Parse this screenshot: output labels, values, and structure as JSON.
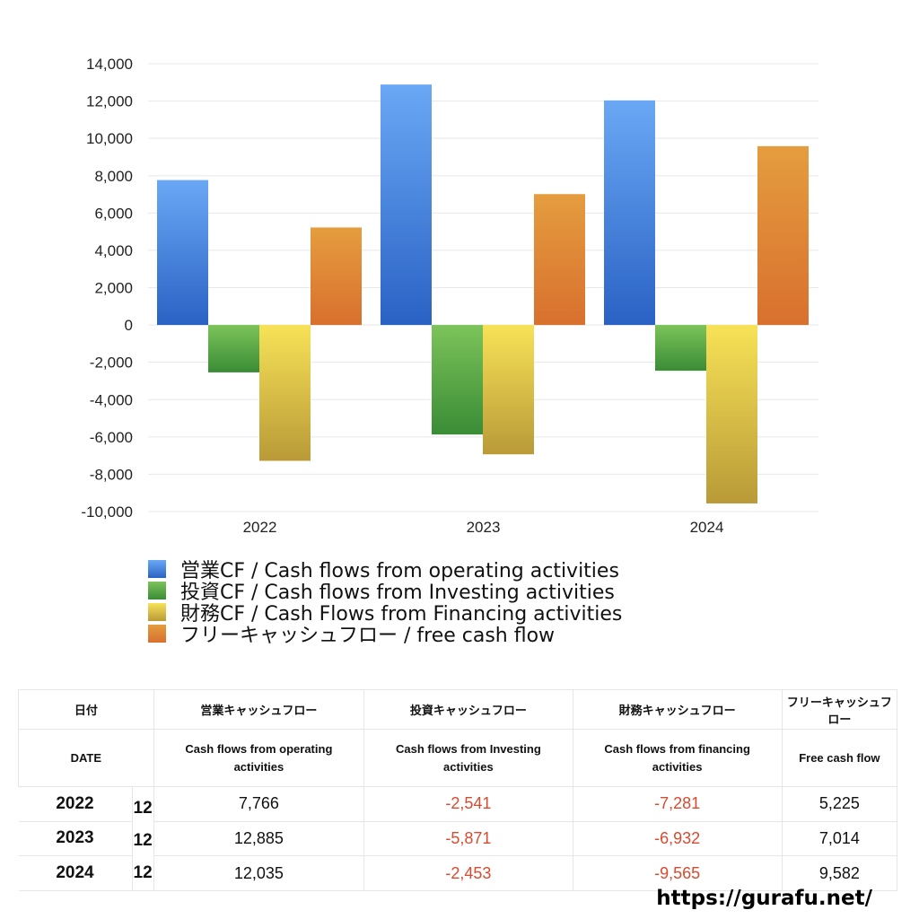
{
  "chart_data": {
    "type": "bar",
    "categories": [
      "2022",
      "2023",
      "2024"
    ],
    "series": [
      {
        "name": "営業CF / Cash flows from operating activities",
        "values": [
          7766,
          12885,
          12035
        ],
        "color": [
          "#6aa8f5",
          "#2a62c4"
        ]
      },
      {
        "name": "投資CF / Cash flows from Investing activities",
        "values": [
          -2541,
          -5871,
          -2453
        ],
        "color": [
          "#7cc35a",
          "#3a8c36"
        ]
      },
      {
        "name": "財務CF / Cash Flows from Financing activities",
        "values": [
          -7281,
          -6932,
          -9565
        ],
        "color": [
          "#f7e257",
          "#b99a38"
        ]
      },
      {
        "name": "フリーキャッシュフロー / free cash flow",
        "values": [
          5225,
          7014,
          9582
        ],
        "color": [
          "#e59d3f",
          "#d8702e"
        ]
      }
    ],
    "ylim": [
      -10000,
      14000
    ],
    "yticks": [
      "14,000",
      "12,000",
      "10,000",
      "8,000",
      "6,000",
      "4,000",
      "2,000",
      "0",
      "-2,000",
      "-4,000",
      "-6,000",
      "-8,000",
      "-10,000"
    ],
    "grid": true,
    "legend": "bottom-left"
  },
  "table": {
    "header_jp": [
      "日付",
      "営業キャッシュフロー",
      "投資キャッシュフロー",
      "財務キャッシュフロー",
      "フリーキャッシュフロー"
    ],
    "header_en": [
      "DATE",
      "Cash flows from operating activities",
      "Cash flows from Investing activities",
      "Cash flows from financing activities",
      "Free cash flow"
    ],
    "rows": [
      {
        "year": "2022",
        "month": "12",
        "op": "7,766",
        "inv": "-2,541",
        "fin": "-7,281",
        "fcf": "5,225"
      },
      {
        "year": "2023",
        "month": "12",
        "op": "12,885",
        "inv": "-5,871",
        "fin": "-6,932",
        "fcf": "7,014"
      },
      {
        "year": "2024",
        "month": "12",
        "op": "12,035",
        "inv": "-2,453",
        "fin": "-9,565",
        "fcf": "9,582"
      }
    ],
    "negative_color": "#d94a2f"
  },
  "footer": {
    "url": "https://gurafu.net/"
  }
}
